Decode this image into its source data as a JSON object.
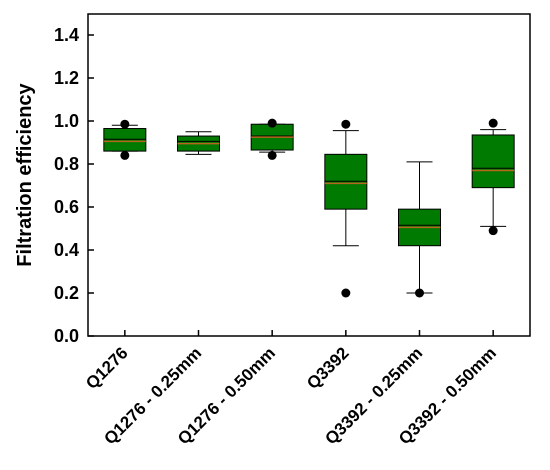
{
  "chart_data": {
    "type": "boxplot",
    "ylabel": "Filtration efficiency",
    "xlabel": "",
    "ylim": [
      0,
      1.5
    ],
    "yticks": [
      "0.0",
      "0.2",
      "0.4",
      "0.6",
      "0.8",
      "1.0",
      "1.2",
      "1.4"
    ],
    "grid": false,
    "colors": {
      "box_fill": "#007a00",
      "median": "#b5651d",
      "outlier": "#000000",
      "whisker": "#000000"
    },
    "categories": [
      "Q1276",
      "Q1276 - 0.25mm",
      "Q1276 - 0.50mm",
      "Q3392",
      "Q3392 - 0.25mm",
      "Q3392 - 0.50mm"
    ],
    "boxes": [
      {
        "whisker_low": 0.86,
        "q1": 0.86,
        "median": 0.915,
        "mean": 0.905,
        "q3": 0.965,
        "whisker_high": 0.98,
        "outliers": [
          0.985,
          0.84
        ]
      },
      {
        "whisker_low": 0.845,
        "q1": 0.86,
        "median": 0.905,
        "mean": 0.895,
        "q3": 0.93,
        "whisker_high": 0.95,
        "outliers": []
      },
      {
        "whisker_low": 0.855,
        "q1": 0.865,
        "median": 0.93,
        "mean": 0.925,
        "q3": 0.985,
        "whisker_high": 0.985,
        "outliers": [
          0.99,
          0.84
        ]
      },
      {
        "whisker_low": 0.42,
        "q1": 0.59,
        "median": 0.72,
        "mean": 0.71,
        "q3": 0.845,
        "whisker_high": 0.955,
        "outliers": [
          0.985,
          0.2
        ]
      },
      {
        "whisker_low": 0.2,
        "q1": 0.42,
        "median": 0.515,
        "mean": 0.505,
        "q3": 0.59,
        "whisker_high": 0.81,
        "outliers": [
          0.2
        ]
      },
      {
        "whisker_low": 0.51,
        "q1": 0.69,
        "median": 0.78,
        "mean": 0.77,
        "q3": 0.935,
        "whisker_high": 0.96,
        "outliers": [
          0.99,
          0.49
        ]
      }
    ]
  }
}
